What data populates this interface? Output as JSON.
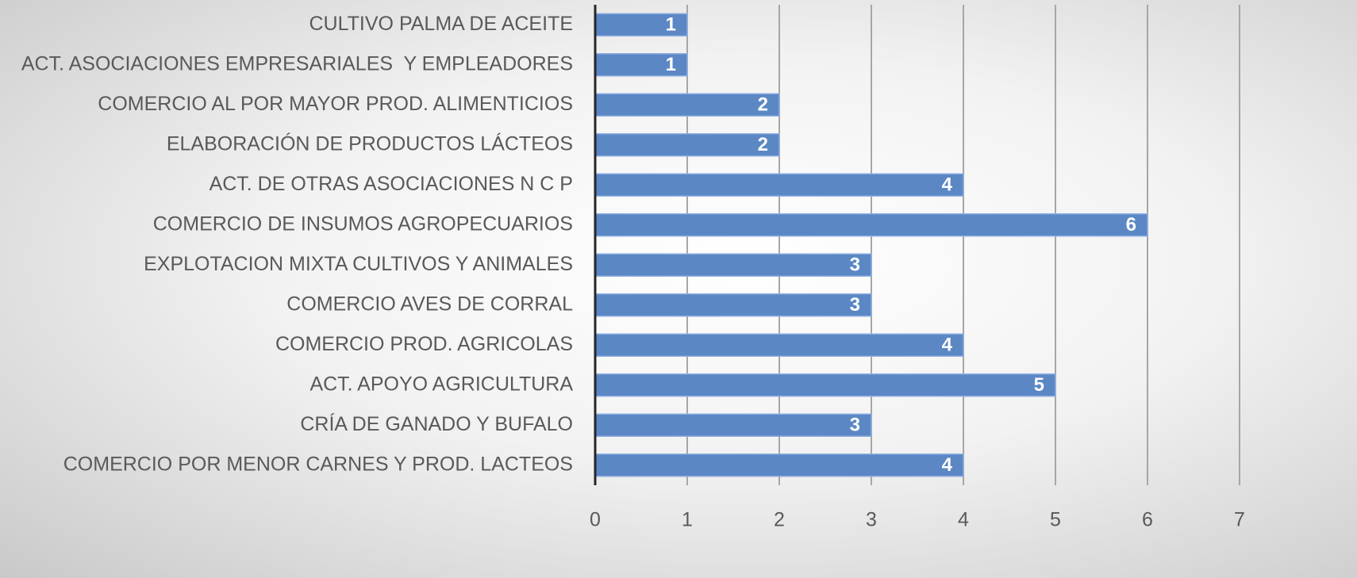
{
  "chart_data": {
    "type": "bar",
    "orientation": "horizontal",
    "categories": [
      "CULTIVO PALMA DE ACEITE",
      "ACT. ASOCIACIONES EMPRESARIALES  Y EMPLEADORES",
      "COMERCIO AL POR MAYOR PROD. ALIMENTICIOS",
      "ELABORACIÓN DE PRODUCTOS LÁCTEOS",
      "ACT. DE OTRAS ASOCIACIONES N C P",
      "COMERCIO DE INSUMOS AGROPECUARIOS",
      "EXPLOTACION MIXTA CULTIVOS Y ANIMALES",
      "COMERCIO AVES DE CORRAL",
      "COMERCIO PROD. AGRICOLAS",
      "ACT. APOYO AGRICULTURA",
      "CRÍA DE GANADO Y BUFALO",
      "COMERCIO POR MENOR CARNES Y PROD. LACTEOS"
    ],
    "values": [
      1,
      1,
      2,
      2,
      4,
      6,
      3,
      3,
      4,
      5,
      3,
      4
    ],
    "color": "#5b87c5",
    "xlim": [
      0,
      7
    ],
    "xticks": [
      0,
      1,
      2,
      3,
      4,
      5,
      6,
      7
    ],
    "grid": true
  }
}
